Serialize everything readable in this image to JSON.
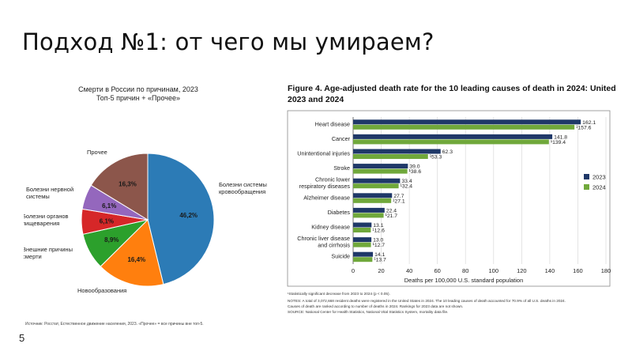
{
  "slide": {
    "title": "Подход №1: от чего мы умираем?",
    "page_number": "5"
  },
  "chart_data": [
    {
      "type": "pie",
      "title": "Смерти в России по причинам, 2023",
      "subtitle": "Топ-5 причин + «Прочее»",
      "slices": [
        {
          "label": "Болезни системы кровообращения",
          "value": 46.2,
          "value_label": "46,2%",
          "color": "#2c7bb6"
        },
        {
          "label": "Новообразования",
          "value": 16.4,
          "value_label": "16,4%",
          "color": "#ff7f0e"
        },
        {
          "label": "Внешние причины смерти",
          "value": 8.9,
          "value_label": "8,9%",
          "color": "#2ca02c"
        },
        {
          "label": "Болезни органов пищеварения",
          "value": 6.1,
          "value_label": "6,1%",
          "color": "#d62728"
        },
        {
          "label": "Болезни нервной системы",
          "value": 6.1,
          "value_label": "6,1%",
          "color": "#9467bd"
        },
        {
          "label": "Прочее",
          "value": 16.3,
          "value_label": "16,3%",
          "color": "#8c564b"
        }
      ],
      "source": "Источник: Росстат, Естественное движение населения, 2023. «Прочее» = все причины вне топ-5."
    },
    {
      "type": "bar",
      "orientation": "horizontal",
      "title": "Figure 4. Age-adjusted death rate for the 10 leading causes of death in 2024: United States, 2023 and 2024",
      "xlabel": "Deaths per 100,000 U.S. standard population",
      "xlim": [
        0,
        180
      ],
      "xticks": [
        0,
        20,
        40,
        60,
        80,
        100,
        120,
        140,
        160,
        180
      ],
      "grid": true,
      "legend_position": "right",
      "categories": [
        "Heart disease",
        "Cancer",
        "Unintentional injuries",
        "Stroke",
        "Chronic lower respiratory diseases",
        "Alzheimer disease",
        "Diabetes",
        "Kidney disease",
        "Chronic liver disease and cirrhosis",
        "Suicide"
      ],
      "series": [
        {
          "name": "2023",
          "color": "#1f3868",
          "values": [
            162.1,
            141.8,
            62.3,
            39.0,
            33.4,
            27.7,
            22.4,
            13.1,
            13.0,
            14.1
          ],
          "value_labels": [
            "162.1",
            "141.8",
            "62.3",
            "39.0",
            "33.4",
            "27.7",
            "22.4",
            "13.1",
            "13.0",
            "14.1"
          ]
        },
        {
          "name": "2024",
          "color": "#70a83b",
          "values": [
            157.6,
            139.4,
            53.3,
            38.6,
            32.4,
            27.1,
            21.7,
            12.6,
            12.7,
            13.7
          ],
          "value_labels": [
            "157.6",
            "139.4",
            "53.3",
            "38.6",
            "32.4",
            "27.1",
            "21.7",
            "12.6",
            "12.7",
            "13.7"
          ],
          "significance_mark": "¹"
        }
      ],
      "notes": [
        "¹Statistically significant decrease from 2023 to 2024 (p < 0.05).",
        "NOTES: A total of 3,072,668 resident deaths were registered in the United States in 2024. The 10 leading causes of death accounted for 70.9% of all U.S. deaths in 2024.",
        "Causes of death are ranked according to number of deaths in 2024. Rankings for 2023 data are not shown.",
        "SOURCE: National Center for Health Statistics, National Vital Statistics System, mortality data file."
      ]
    }
  ]
}
